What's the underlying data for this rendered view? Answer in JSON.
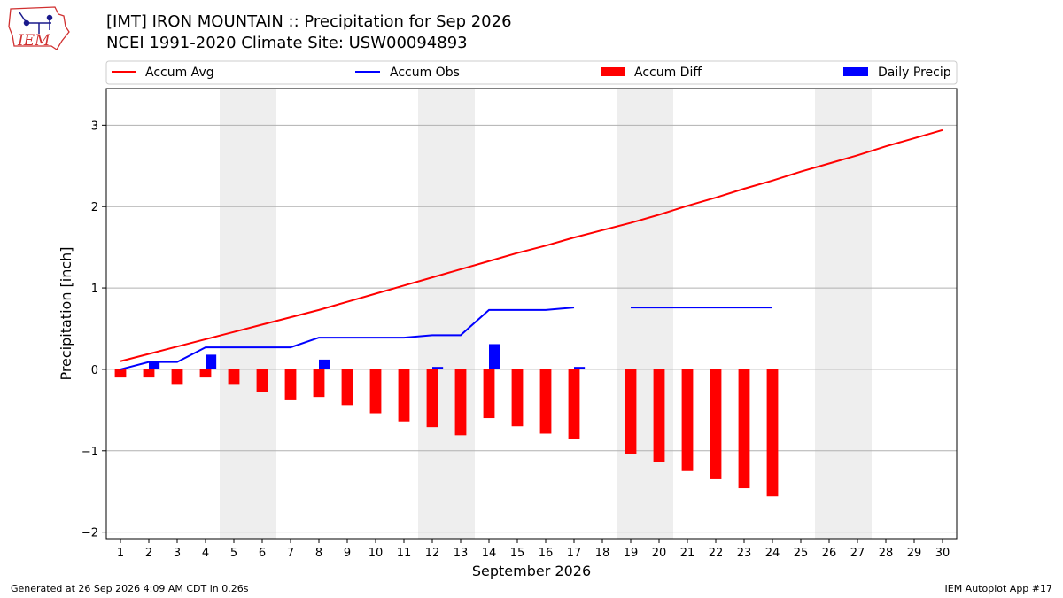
{
  "header": {
    "title_line1": "[IMT] IRON MOUNTAIN :: Precipitation for Sep 2026",
    "title_line2": "NCEI 1991-2020 Climate Site: USW00094893",
    "logo_text": "IEM"
  },
  "footer": {
    "left": "Generated at 26 Sep 2026 4:09 AM CDT in 0.26s",
    "right": "IEM Autoplot App #17"
  },
  "colors": {
    "avg": "#ff0000",
    "obs": "#0000ff",
    "diff": "#ff0000",
    "daily": "#0000ff",
    "weekend": "#eeeeee",
    "grid": "#b0b0b0"
  },
  "chart_data": {
    "type": "bar",
    "xlabel": "September 2026",
    "ylabel": "Precipitation [inch]",
    "ylim": [
      -2.08,
      3.45
    ],
    "xlim": [
      0.5,
      30.5
    ],
    "yticks": [
      -2,
      -1,
      0,
      1,
      2,
      3
    ],
    "ytick_labels": [
      "−2",
      "−1",
      "0",
      "1",
      "2",
      "3"
    ],
    "grid": true,
    "legend_position": "top",
    "weekend_spans": [
      [
        4.5,
        6.5
      ],
      [
        11.5,
        13.5
      ],
      [
        18.5,
        20.5
      ],
      [
        25.5,
        27.5
      ]
    ],
    "days": [
      1,
      2,
      3,
      4,
      5,
      6,
      7,
      8,
      9,
      10,
      11,
      12,
      13,
      14,
      15,
      16,
      17,
      18,
      19,
      20,
      21,
      22,
      23,
      24,
      25,
      26,
      27,
      28,
      29,
      30
    ],
    "series": [
      {
        "name": "Accum Avg",
        "kind": "line",
        "values": [
          0.1,
          0.19,
          0.28,
          0.37,
          0.46,
          0.55,
          0.64,
          0.73,
          0.83,
          0.93,
          1.03,
          1.13,
          1.23,
          1.33,
          1.43,
          1.52,
          1.62,
          1.71,
          1.8,
          1.9,
          2.01,
          2.11,
          2.22,
          2.32,
          2.43,
          2.53,
          2.63,
          2.74,
          2.84,
          2.94
        ]
      },
      {
        "name": "Accum Obs",
        "kind": "line",
        "values": [
          0.0,
          0.09,
          0.09,
          0.27,
          0.27,
          0.27,
          0.27,
          0.39,
          0.39,
          0.39,
          0.39,
          0.42,
          0.42,
          0.73,
          0.73,
          0.73,
          0.76,
          null,
          0.76,
          0.76,
          0.76,
          0.76,
          0.76,
          0.76,
          null,
          null,
          null,
          null,
          null,
          null
        ]
      },
      {
        "name": "Accum Diff",
        "kind": "bar",
        "values": [
          -0.1,
          -0.1,
          -0.19,
          -0.1,
          -0.19,
          -0.28,
          -0.37,
          -0.34,
          -0.44,
          -0.54,
          -0.64,
          -0.71,
          -0.81,
          -0.6,
          -0.7,
          -0.79,
          -0.86,
          null,
          -1.04,
          -1.14,
          -1.25,
          -1.35,
          -1.46,
          -1.56,
          null,
          null,
          null,
          null,
          null,
          null
        ]
      },
      {
        "name": "Daily Precip",
        "kind": "bar",
        "values": [
          0.0,
          0.09,
          0.0,
          0.18,
          0.0,
          0.0,
          0.0,
          0.12,
          0.0,
          0.0,
          0.0,
          0.03,
          0.0,
          0.31,
          0.0,
          0.0,
          0.03,
          null,
          0.0,
          0.0,
          0.0,
          0.0,
          0.0,
          0.0,
          null,
          null,
          null,
          null,
          null,
          null
        ]
      }
    ]
  }
}
